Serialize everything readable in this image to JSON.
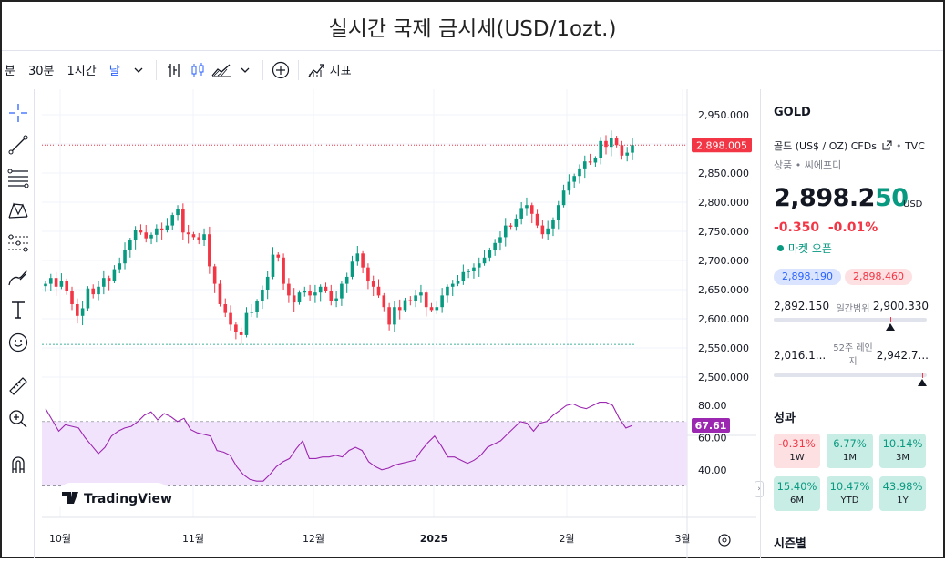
{
  "title": "실시간 국제 금시세(USD/1ozt.)",
  "toolbar": {
    "intervals": [
      "분",
      "30분",
      "1시간",
      "날"
    ],
    "active_interval": "날",
    "indicators_label": "지표"
  },
  "symbol_info": {
    "symbol": "GOLD",
    "description": "골드 (US$ / OZ) CFDs",
    "exchange": "TVC",
    "category": "상품 • 씨에프디",
    "price_main": "2,898.2",
    "price_tail": "50",
    "currency": "USD",
    "change": "-0.350",
    "change_pct": "-0.01%",
    "market_status": "마켓 오픈",
    "bid": "2,898.190",
    "ask": "2,898.460",
    "day_low": "2,892.150",
    "day_range_label": "일간범위",
    "day_high": "2,900.330",
    "wk52_low": "2,016.1...",
    "wk52_label": "52주 레인지",
    "wk52_high": "2,942.7...",
    "day_range_position": 0.76,
    "wk52_position": 0.97
  },
  "performance": {
    "title": "성과",
    "items": [
      {
        "value": "-0.31%",
        "label": "1W",
        "sign": "neg"
      },
      {
        "value": "6.77%",
        "label": "1M",
        "sign": "pos"
      },
      {
        "value": "10.14%",
        "label": "3M",
        "sign": "pos"
      },
      {
        "value": "15.40%",
        "label": "6M",
        "sign": "pos"
      },
      {
        "value": "10.47%",
        "label": "YTD",
        "sign": "pos"
      },
      {
        "value": "43.98%",
        "label": "1Y",
        "sign": "pos"
      }
    ]
  },
  "seasonal_title": "시즌별",
  "colors": {
    "up": "#089981",
    "down": "#f23645",
    "rsi": "#9c27b0",
    "accent": "#2962ff"
  },
  "chart_data": [
    {
      "type": "candlestick",
      "title": "",
      "x_ticks": [
        "10월",
        "11월",
        "12월",
        "2025",
        "2월",
        "3월"
      ],
      "ylim": [
        2500,
        2950
      ],
      "y_ticks": [
        "2,950.000",
        "2,900.000",
        "2,850.000",
        "2,800.000",
        "2,750.000",
        "2,700.000",
        "2,650.000",
        "2,600.000",
        "2,550.000",
        "2,500.000"
      ],
      "last_price_label": "2,898.005",
      "last_price": 2898.0,
      "reference_low_line": 2556,
      "closes": [
        2660,
        2670,
        2655,
        2665,
        2648,
        2625,
        2605,
        2618,
        2652,
        2642,
        2655,
        2670,
        2665,
        2685,
        2695,
        2718,
        2735,
        2752,
        2748,
        2738,
        2744,
        2755,
        2752,
        2760,
        2778,
        2788,
        2748,
        2745,
        2740,
        2735,
        2745,
        2690,
        2660,
        2625,
        2610,
        2590,
        2578,
        2572,
        2610,
        2612,
        2630,
        2650,
        2672,
        2710,
        2705,
        2660,
        2640,
        2628,
        2645,
        2648,
        2640,
        2645,
        2655,
        2648,
        2630,
        2635,
        2660,
        2672,
        2698,
        2712,
        2688,
        2664,
        2655,
        2640,
        2620,
        2590,
        2620,
        2615,
        2632,
        2630,
        2640,
        2645,
        2620,
        2615,
        2620,
        2640,
        2655,
        2660,
        2665,
        2680,
        2682,
        2688,
        2695,
        2705,
        2718,
        2730,
        2740,
        2760,
        2758,
        2772,
        2790,
        2795,
        2780,
        2760,
        2745,
        2755,
        2770,
        2795,
        2820,
        2835,
        2845,
        2858,
        2870,
        2868,
        2875,
        2905,
        2895,
        2910,
        2898,
        2880,
        2885,
        2898
      ]
    },
    {
      "type": "line",
      "title": "",
      "ylim": [
        28,
        88
      ],
      "y_ticks": [
        "80.00",
        "60.00",
        "40.00"
      ],
      "band": [
        70,
        30
      ],
      "last_value_label": "67.61",
      "last_value": 67.61,
      "values": [
        78,
        71,
        64,
        68,
        67,
        66,
        60,
        55,
        50,
        54,
        61,
        64,
        66,
        67,
        70,
        74,
        76,
        71,
        75,
        73,
        70,
        72,
        65,
        63,
        62,
        61,
        52,
        51,
        49,
        42,
        37,
        34,
        33,
        33,
        37,
        42,
        45,
        47,
        53,
        58,
        47,
        47,
        48,
        48,
        49,
        48,
        52,
        54,
        52,
        45,
        42,
        40,
        41,
        43,
        44,
        45,
        46,
        52,
        57,
        61,
        55,
        48,
        48,
        46,
        44,
        46,
        49,
        54,
        56,
        58,
        62,
        66,
        70,
        69,
        64,
        69,
        70,
        74,
        77,
        80,
        81,
        79,
        78,
        80,
        82,
        82,
        80,
        72,
        66,
        67.61
      ]
    }
  ],
  "watermark": "TradingView"
}
